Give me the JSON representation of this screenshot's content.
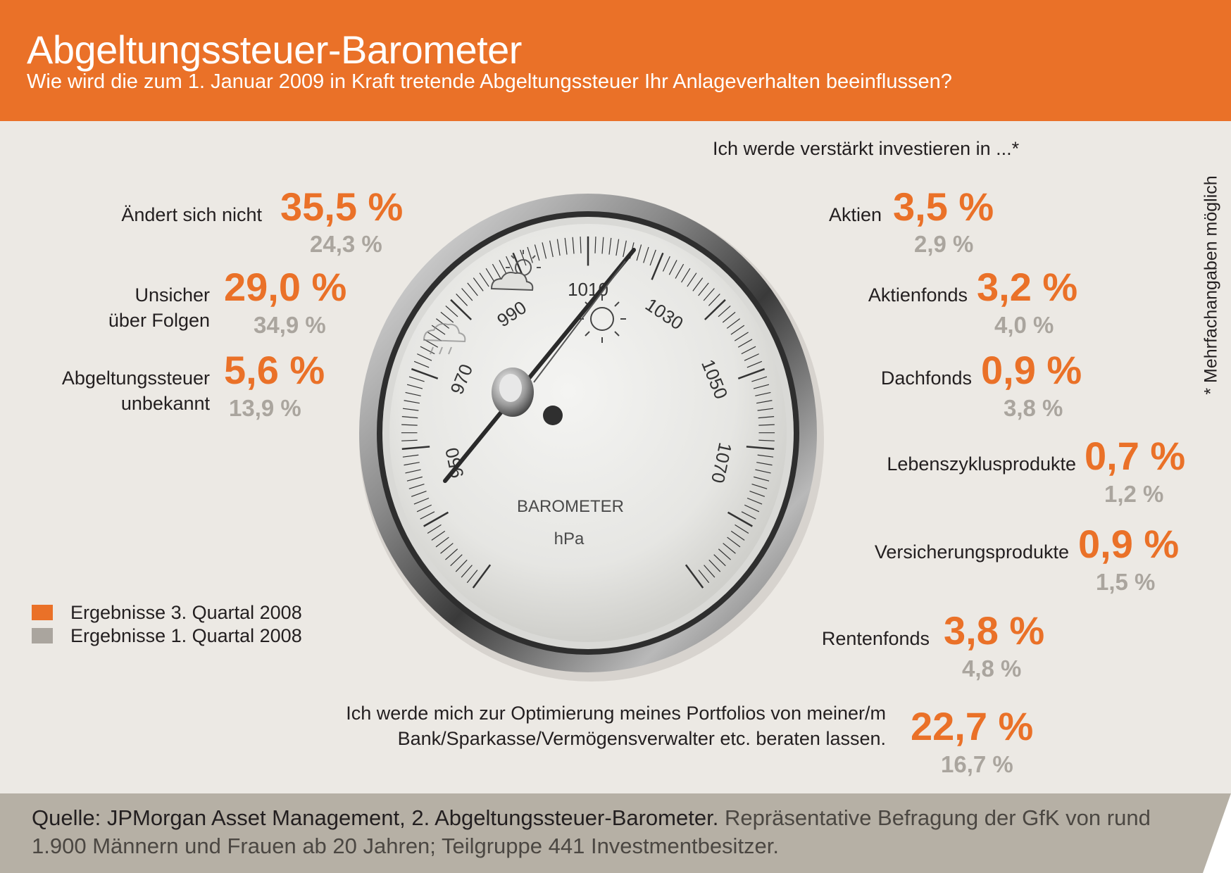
{
  "header": {
    "title": "Abgeltungssteuer-Barometer",
    "subtitle": "Wie wird die zum 1. Januar 2009 in Kraft tretende Abgeltungssteuer Ihr Anlageverhalten beeinflussen?"
  },
  "colors": {
    "accent_orange": "#ea7128",
    "previous_gray": "#aaa59e",
    "background": "#ece9e4",
    "footer_bg": "#b6b0a5"
  },
  "gauge": {
    "tick_labels": [
      "950",
      "970",
      "990",
      "1010",
      "1030",
      "1050",
      "1070"
    ],
    "face_title": "BAROMETER",
    "unit": "hPa",
    "icons": [
      "rain-cloud-icon",
      "sun-cloud-icon",
      "sun-icon"
    ]
  },
  "intro_right": "Ich werde verstärkt investieren in ...*",
  "footnote": "* Mehrfachangaben möglich",
  "legend": [
    {
      "label": "Ergebnisse 3. Quartal 2008",
      "color": "#ea7128"
    },
    {
      "label": "Ergebnisse 1. Quartal 2008",
      "color": "#aaa59e"
    }
  ],
  "display": {
    "left": [
      {
        "label": "Ändert sich nicht",
        "q3": "35,5 %",
        "q1": "24,3 %"
      },
      {
        "label_lines": [
          "Unsicher",
          "über Folgen"
        ],
        "q3": "29,0 %",
        "q1": "34,9 %"
      },
      {
        "label_lines": [
          "Abgeltungssteuer",
          "unbekannt"
        ],
        "q3": "5,6 %",
        "q1": "13,9 %"
      }
    ],
    "right": [
      {
        "label": "Aktien",
        "q3": "3,5 %",
        "q1": "2,9 %"
      },
      {
        "label": "Aktienfonds",
        "q3": "3,2 %",
        "q1": "4,0 %"
      },
      {
        "label": "Dachfonds",
        "q3": "0,9 %",
        "q1": "3,8 %"
      },
      {
        "label": "Lebenszyklusprodukte",
        "q3": "0,7 %",
        "q1": "1,2 %"
      },
      {
        "label": "Versicherungsprodukte",
        "q3": "0,9 %",
        "q1": "1,5 %"
      },
      {
        "label": "Rentenfonds",
        "q3": "3,8 %",
        "q1": "4,8 %"
      }
    ],
    "bottom": {
      "label_lines": [
        "Ich werde mich zur Optimierung meines Portfolios von meiner/m",
        "Bank/Sparkasse/Vermögensverwalter etc. beraten lassen."
      ],
      "q3": "22,7 %",
      "q1": "16,7 %"
    }
  },
  "chart_data": {
    "type": "table",
    "title": "Abgeltungssteuer-Barometer",
    "subtitle": "Wie wird die zum 1. Januar 2009 in Kraft tretende Abgeltungssteuer Ihr Anlageverhalten beeinflussen?",
    "unit": "%",
    "series": [
      {
        "name": "Ergebnisse 3. Quartal 2008",
        "values": [
          35.5,
          29.0,
          5.6,
          3.5,
          3.2,
          0.9,
          0.7,
          0.9,
          3.8,
          22.7
        ]
      },
      {
        "name": "Ergebnisse 1. Quartal 2008",
        "values": [
          24.3,
          34.9,
          13.9,
          2.9,
          4.0,
          3.8,
          1.2,
          1.5,
          4.8,
          16.7
        ]
      }
    ],
    "categories": [
      "Ändert sich nicht",
      "Unsicher über Folgen",
      "Abgeltungssteuer unbekannt",
      "Aktien",
      "Aktienfonds",
      "Dachfonds",
      "Lebenszyklusprodukte",
      "Versicherungsprodukte",
      "Rentenfonds",
      "Ich werde mich zur Optimierung meines Portfolios von meiner/m Bank/Sparkasse/Vermögensverwalter etc. beraten lassen."
    ]
  },
  "footer": {
    "source_bold": "Quelle: JPMorgan Asset Management, 2. Abgeltungssteuer-Barometer.",
    "source_rest": " Repräsentative Befragung der GfK von rund 1.900 Männern und Frauen ab 20 Jahren; Teilgruppe 441 Investmentbesitzer."
  }
}
